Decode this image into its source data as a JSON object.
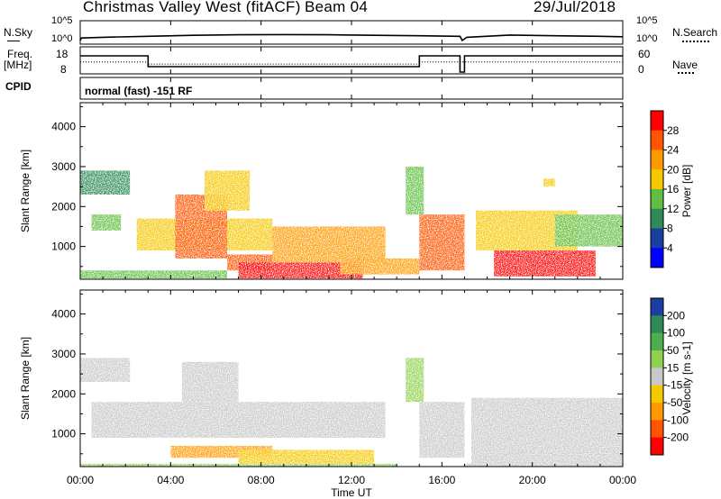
{
  "header": {
    "station": "Christmas Valley West (fitACF)",
    "beam": "Beam 04",
    "date": "29/Jul/2018"
  },
  "nsky_panel": {
    "left_label": "N.Sky",
    "right_label": "N.Search",
    "left_ticks": [
      "10^5",
      "10^0"
    ],
    "right_ticks": [
      "10^5",
      "10^0"
    ]
  },
  "freq_panel": {
    "left_label_1": "Freq.",
    "left_label_2": "[MHz]",
    "right_label": "Nave",
    "left_ticks": [
      "18",
      "8"
    ],
    "right_ticks": [
      "60",
      "0"
    ]
  },
  "cpid_panel": {
    "label": "CPID",
    "mode": "normal (fast)  -151 RF"
  },
  "power_panel": {
    "ylabel": "Slant Range [km]",
    "colorbar_label": "Power [dB]",
    "colorbar_ticks": [
      "28",
      "24",
      "20",
      "16",
      "12",
      "8",
      "4"
    ],
    "colorbar_colors": [
      "#ff0000",
      "#ff5500",
      "#ff9a00",
      "#f5c800",
      "#5fbf40",
      "#2e8b57",
      "#1a3fa0",
      "#0000ff"
    ]
  },
  "velocity_panel": {
    "ylabel": "Slant Range [km]",
    "colorbar_label": "Velocity [m s-1]",
    "colorbar_ticks": [
      "200",
      "100",
      "50",
      "15",
      "-15",
      "-50",
      "-100",
      "-200"
    ],
    "colorbar_colors": [
      "#1a3fa0",
      "#2e8b57",
      "#4cae4c",
      "#8fd14f",
      "#c8c8c8",
      "#f5c800",
      "#ff9a00",
      "#ff5500",
      "#ff0000"
    ]
  },
  "time_axis": {
    "label": "Time UT",
    "ticks": [
      "00:00",
      "04:00",
      "08:00",
      "12:00",
      "16:00",
      "20:00",
      "00:00"
    ]
  },
  "chart_data": [
    {
      "type": "heatmap",
      "title": "Power [dB]",
      "xlabel": "Time UT",
      "ylabel": "Slant Range [km]",
      "xlim": [
        0,
        24
      ],
      "ylim": [
        180,
        4600
      ],
      "yticks": [
        1000,
        2000,
        3000,
        4000
      ],
      "colorscale": [
        4,
        28
      ],
      "regions": [
        {
          "t": [
            0.0,
            2.2
          ],
          "r": [
            2300,
            2900
          ],
          "v": 10
        },
        {
          "t": [
            0.5,
            1.8
          ],
          "r": [
            1400,
            1800
          ],
          "v": 12
        },
        {
          "t": [
            0.0,
            6.5
          ],
          "r": [
            200,
            400
          ],
          "v": 14
        },
        {
          "t": [
            2.5,
            8.5
          ],
          "r": [
            900,
            1700
          ],
          "v": 18
        },
        {
          "t": [
            4.2,
            6.5
          ],
          "r": [
            700,
            2300
          ],
          "v": 26
        },
        {
          "t": [
            5.5,
            7.5
          ],
          "r": [
            1900,
            2900
          ],
          "v": 16
        },
        {
          "t": [
            6.5,
            8.5
          ],
          "r": [
            400,
            800
          ],
          "v": 26
        },
        {
          "t": [
            7.0,
            12.5
          ],
          "r": [
            200,
            600
          ],
          "v": 27
        },
        {
          "t": [
            8.5,
            13.5
          ],
          "r": [
            600,
            1500
          ],
          "v": 20
        },
        {
          "t": [
            11.5,
            15.0
          ],
          "r": [
            300,
            700
          ],
          "v": 22
        },
        {
          "t": [
            15.0,
            17.0
          ],
          "r": [
            400,
            1800
          ],
          "v": 25
        },
        {
          "t": [
            14.4,
            15.2
          ],
          "r": [
            1800,
            3000
          ],
          "v": 12
        },
        {
          "t": [
            17.5,
            22.0
          ],
          "r": [
            900,
            1900
          ],
          "v": 18
        },
        {
          "t": [
            18.3,
            22.8
          ],
          "r": [
            250,
            900
          ],
          "v": 28
        },
        {
          "t": [
            21.0,
            24.0
          ],
          "r": [
            1000,
            1800
          ],
          "v": 11
        },
        {
          "t": [
            20.5,
            21.0
          ],
          "r": [
            2500,
            2700
          ],
          "v": 16
        }
      ]
    },
    {
      "type": "heatmap",
      "title": "Velocity [m s-1]",
      "xlabel": "Time UT",
      "ylabel": "Slant Range [km]",
      "xlim": [
        0,
        24
      ],
      "ylim": [
        180,
        4600
      ],
      "yticks": [
        1000,
        2000,
        3000,
        4000
      ],
      "colorscale": [
        -200,
        200
      ],
      "regions": [
        {
          "t": [
            0.0,
            2.2
          ],
          "r": [
            2300,
            2900
          ],
          "v": 0
        },
        {
          "t": [
            0.5,
            13.5
          ],
          "r": [
            900,
            1800
          ],
          "v": 0
        },
        {
          "t": [
            4.5,
            7.0
          ],
          "r": [
            1800,
            2800
          ],
          "v": 0
        },
        {
          "t": [
            4.0,
            8.5
          ],
          "r": [
            400,
            700
          ],
          "v": -60
        },
        {
          "t": [
            7.0,
            13.0
          ],
          "r": [
            250,
            600
          ],
          "v": -40
        },
        {
          "t": [
            0.0,
            14.0
          ],
          "r": [
            180,
            250
          ],
          "v": 40
        },
        {
          "t": [
            15.0,
            17.0
          ],
          "r": [
            400,
            1800
          ],
          "v": 0
        },
        {
          "t": [
            14.4,
            15.2
          ],
          "r": [
            1800,
            2900
          ],
          "v": 30
        },
        {
          "t": [
            17.3,
            24.0
          ],
          "r": [
            250,
            1900
          ],
          "v": 0
        },
        {
          "t": [
            17.0,
            24.0
          ],
          "r": [
            180,
            260
          ],
          "v": 0
        }
      ]
    },
    {
      "type": "line",
      "title": "N.Sky",
      "x": [
        0,
        0.05,
        1,
        3,
        5,
        7,
        9,
        11,
        13,
        15,
        16.8,
        16.9,
        17.1,
        19,
        21,
        23,
        24
      ],
      "y": [
        1,
        6,
        10,
        20,
        40,
        60,
        70,
        60,
        40,
        30,
        20,
        0,
        10,
        50,
        30,
        20,
        15
      ]
    },
    {
      "type": "line",
      "title": "Freq. [MHz]",
      "x": [
        0,
        3.0,
        3.0,
        15.0,
        15.0,
        16.8,
        16.8,
        17.0,
        17.0,
        24
      ],
      "y": [
        15.5,
        15.5,
        10.5,
        10.5,
        15.5,
        15.5,
        8.0,
        8.0,
        15.5,
        15.5
      ],
      "ylim": [
        8,
        18
      ]
    },
    {
      "type": "line",
      "title": "Nave",
      "x": [
        0,
        3.0,
        3.0,
        15.0,
        15.0,
        24
      ],
      "y": [
        28,
        28,
        22,
        22,
        28,
        28
      ],
      "ylim": [
        0,
        60
      ]
    }
  ]
}
